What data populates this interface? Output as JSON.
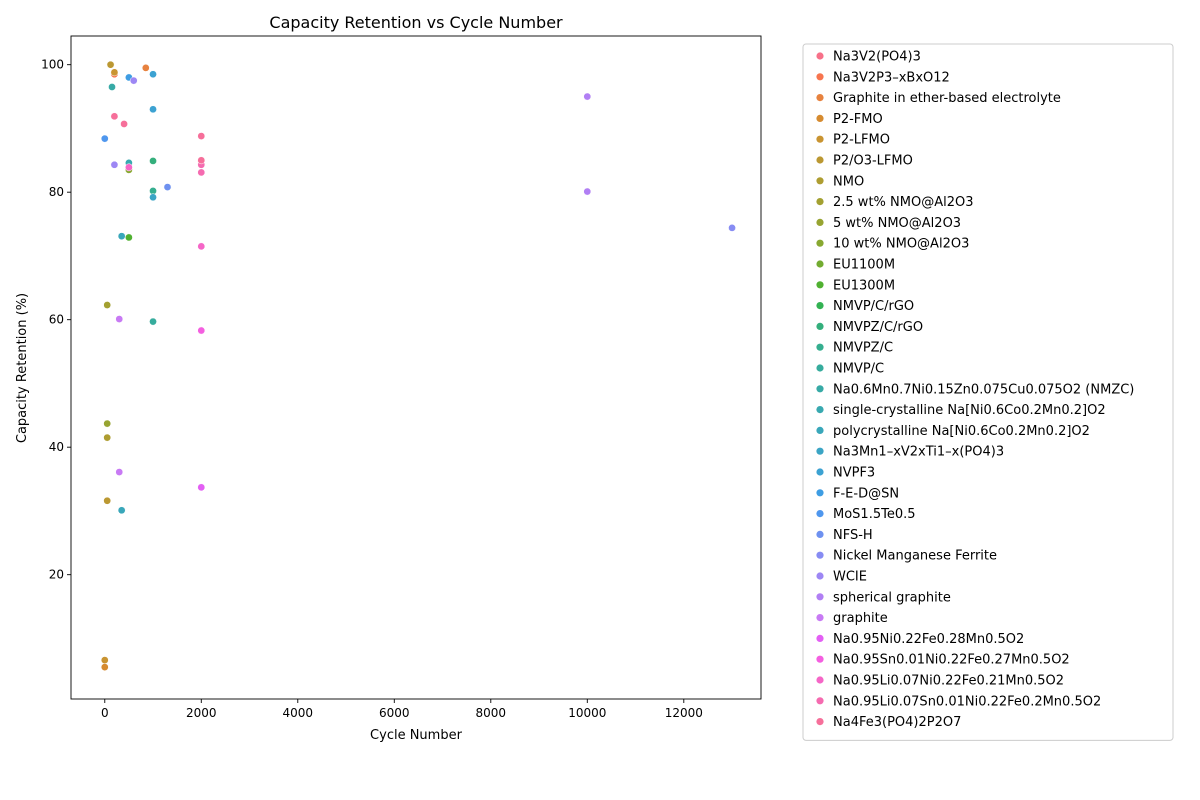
{
  "chart_data": {
    "type": "scatter",
    "title": "Capacity Retention vs Cycle Number",
    "xlabel": "Cycle Number",
    "ylabel": "Capacity Retention (%)",
    "xlim": [
      -700,
      13600
    ],
    "ylim": [
      0.5,
      104.5
    ],
    "xticks": [
      0,
      2000,
      4000,
      6000,
      8000,
      10000,
      12000
    ],
    "yticks": [
      20,
      40,
      60,
      80,
      100
    ],
    "grid": false,
    "legend_position": "outside right",
    "series": [
      {
        "name": "Na3V2(PO4)3",
        "color": "#f77189",
        "points": []
      },
      {
        "name": "Na3V2P3–xBxO12",
        "color": "#f7754f",
        "points": [
          [
            200,
            98.5
          ]
        ]
      },
      {
        "name": "Graphite in ether-based electrolyte",
        "color": "#e7823f",
        "points": [
          [
            850,
            99.5
          ]
        ]
      },
      {
        "name": "P2-FMO",
        "color": "#d68b30",
        "points": [
          [
            0,
            5.5
          ]
        ]
      },
      {
        "name": "P2-LFMO",
        "color": "#c99431",
        "points": [
          [
            0,
            6.6
          ],
          [
            200,
            98.8
          ]
        ]
      },
      {
        "name": "P2/O3-LFMO",
        "color": "#bb9832",
        "points": [
          [
            50,
            31.6
          ],
          [
            120,
            100
          ]
        ]
      },
      {
        "name": "NMO",
        "color": "#ae9d31",
        "points": [
          [
            50,
            41.5
          ]
        ]
      },
      {
        "name": "2.5 wt% NMO@Al2O3",
        "color": "#a3a031",
        "points": [
          [
            50,
            62.3
          ]
        ]
      },
      {
        "name": "5 wt% NMO@Al2O3",
        "color": "#97a431",
        "points": [
          [
            50,
            43.7
          ]
        ]
      },
      {
        "name": "10 wt% NMO@Al2O3",
        "color": "#88a831",
        "points": [
          [
            500,
            83.5
          ]
        ]
      },
      {
        "name": "EU1100M",
        "color": "#73ac31",
        "points": []
      },
      {
        "name": "EU1300M",
        "color": "#50b131",
        "points": [
          [
            500,
            72.9
          ]
        ]
      },
      {
        "name": "NMVP/C/rGO",
        "color": "#32b252",
        "points": []
      },
      {
        "name": "NMVPZ/C/rGO",
        "color": "#34af7c",
        "points": [
          [
            1000,
            84.9
          ]
        ]
      },
      {
        "name": "NMVPZ/C",
        "color": "#35ae8f",
        "points": [
          [
            1000,
            80.2
          ]
        ]
      },
      {
        "name": "NMVP/C",
        "color": "#36ac9d",
        "points": [
          [
            1000,
            59.7
          ]
        ]
      },
      {
        "name": "Na0.6Mn0.7Ni0.15Zn0.075Cu0.075O2 (NMZC)",
        "color": "#37aaa6",
        "points": [
          [
            150,
            96.5
          ]
        ]
      },
      {
        "name": "single-crystalline Na[Ni0.6Co0.2Mn0.2]O2",
        "color": "#38a9b0",
        "points": [
          [
            500,
            84.6
          ]
        ]
      },
      {
        "name": "polycrystalline Na[Ni0.6Co0.2Mn0.2]O2",
        "color": "#39a7ba",
        "points": [
          [
            350,
            73.1
          ],
          [
            350,
            30.1
          ]
        ]
      },
      {
        "name": "Na3Mn1–xV2xTi1–x(PO4)3",
        "color": "#3ba5c5",
        "points": [
          [
            1000,
            79.2
          ]
        ]
      },
      {
        "name": "NVPF3",
        "color": "#3ca2d2",
        "points": [
          [
            1000,
            93.0
          ],
          [
            1000,
            98.5
          ]
        ]
      },
      {
        "name": "F-E-D@SN",
        "color": "#3e9de3",
        "points": [
          [
            500,
            98.0
          ]
        ]
      },
      {
        "name": "MoS1.5Te0.5",
        "color": "#4f97ee",
        "points": [
          [
            0,
            88.4
          ]
        ]
      },
      {
        "name": "NFS-H",
        "color": "#6e91f0",
        "points": [
          [
            1300,
            80.8
          ]
        ]
      },
      {
        "name": "Nickel Manganese Ferrite",
        "color": "#878cf3",
        "points": [
          [
            13000,
            74.4
          ]
        ]
      },
      {
        "name": "WCIE",
        "color": "#9d87f4",
        "points": [
          [
            200,
            84.3
          ],
          [
            600,
            97.5
          ]
        ]
      },
      {
        "name": "spherical graphite",
        "color": "#b17ff4",
        "points": [
          [
            10000,
            95.0
          ],
          [
            10000,
            80.1
          ]
        ]
      },
      {
        "name": "graphite",
        "color": "#c87af4",
        "points": [
          [
            300,
            60.1
          ],
          [
            300,
            36.1
          ]
        ]
      },
      {
        "name": "Na0.95Ni0.22Fe0.28Mn0.5O2",
        "color": "#e35ff4",
        "points": [
          [
            2000,
            33.7
          ]
        ]
      },
      {
        "name": "Na0.95Sn0.01Ni0.22Fe0.27Mn0.5O2",
        "color": "#f45fe0",
        "points": [
          [
            2000,
            58.3
          ]
        ]
      },
      {
        "name": "Na0.95Li0.07Ni0.22Fe0.21Mn0.5O2",
        "color": "#f566c7",
        "points": [
          [
            2000,
            71.5
          ],
          [
            500,
            83.9
          ]
        ]
      },
      {
        "name": "Na0.95Li0.07Sn0.01Ni0.22Fe0.2Mn0.5O2",
        "color": "#f56bb0",
        "points": [
          [
            2000,
            83.1
          ],
          [
            2000,
            84.3
          ]
        ]
      },
      {
        "name": "Na4Fe3(PO4)2P2O7",
        "color": "#f66f9a",
        "points": [
          [
            2000,
            88.8
          ],
          [
            2000,
            85.0
          ],
          [
            200,
            91.9
          ],
          [
            400,
            90.7
          ]
        ]
      }
    ]
  }
}
